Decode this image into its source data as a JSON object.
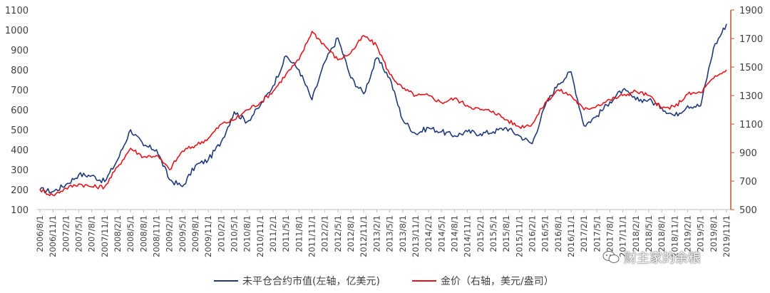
{
  "chart_data": {
    "type": "line",
    "x": [
      "2006/8/1",
      "2006/11/1",
      "2007/2/1",
      "2007/5/1",
      "2007/8/1",
      "2007/11/1",
      "2008/2/1",
      "2008/5/1",
      "2008/8/1",
      "2008/11/1",
      "2009/2/1",
      "2009/5/1",
      "2009/8/1",
      "2009/11/1",
      "2010/2/1",
      "2010/5/1",
      "2010/8/1",
      "2010/11/1",
      "2011/2/1",
      "2011/5/1",
      "2011/8/1",
      "2011/11/1",
      "2012/2/1",
      "2012/5/1",
      "2012/8/1",
      "2012/11/1",
      "2013/2/1",
      "2013/5/1",
      "2013/8/1",
      "2013/11/1",
      "2014/2/1",
      "2014/5/1",
      "2014/8/1",
      "2014/11/1",
      "2015/2/1",
      "2015/5/1",
      "2015/8/1",
      "2015/11/1",
      "2016/2/1",
      "2016/5/1",
      "2016/8/1",
      "2016/11/1",
      "2017/2/1",
      "2017/5/1",
      "2017/8/1",
      "2017/11/1",
      "2018/2/1",
      "2018/5/1",
      "2018/8/1",
      "2018/11/1",
      "2019/2/1",
      "2019/5/1",
      "2019/8/1",
      "2019/11/1"
    ],
    "series": [
      {
        "name": "未平仓合约市值(左轴，亿美元)",
        "axis": "left",
        "color": "#1f3a7a",
        "values": [
          200,
          190,
          225,
          275,
          270,
          240,
          350,
          500,
          420,
          400,
          250,
          215,
          320,
          350,
          440,
          590,
          540,
          620,
          720,
          870,
          800,
          650,
          840,
          960,
          760,
          680,
          860,
          760,
          550,
          480,
          510,
          490,
          470,
          490,
          480,
          490,
          510,
          470,
          430,
          620,
          730,
          790,
          520,
          570,
          640,
          700,
          650,
          650,
          610,
          570,
          620,
          620,
          910,
          1030
        ]
      },
      {
        "name": "金价（右轴，美元/盎司）",
        "axis": "right",
        "color": "#e8141b",
        "values": [
          640,
          600,
          650,
          680,
          660,
          660,
          800,
          930,
          870,
          880,
          780,
          910,
          950,
          1000,
          1100,
          1130,
          1200,
          1250,
          1330,
          1450,
          1550,
          1750,
          1650,
          1550,
          1600,
          1720,
          1650,
          1450,
          1350,
          1300,
          1300,
          1250,
          1280,
          1230,
          1200,
          1190,
          1130,
          1080,
          1100,
          1250,
          1340,
          1300,
          1200,
          1230,
          1270,
          1300,
          1330,
          1300,
          1210,
          1220,
          1310,
          1320,
          1420,
          1480
        ]
      }
    ],
    "y_left": {
      "ylim": [
        100,
        1100
      ],
      "ticks": [
        100,
        200,
        300,
        400,
        500,
        600,
        700,
        800,
        900,
        1000,
        1100
      ]
    },
    "y_right": {
      "ylim": [
        500,
        1900
      ],
      "ticks": [
        500,
        700,
        900,
        1100,
        1300,
        1500,
        1700,
        1900
      ]
    },
    "grid": false,
    "legend_position": "bottom"
  },
  "legend": {
    "series1": "未平仓合约市值(左轴，亿美元)",
    "series2": "金价（右轴，美元/盎司）"
  },
  "watermark": {
    "text": "财主家的余粮"
  },
  "colors": {
    "series1": "#1f3a7a",
    "series2": "#e8141b",
    "right_axis": "#c0562a",
    "axis": "#bfbfbf"
  }
}
